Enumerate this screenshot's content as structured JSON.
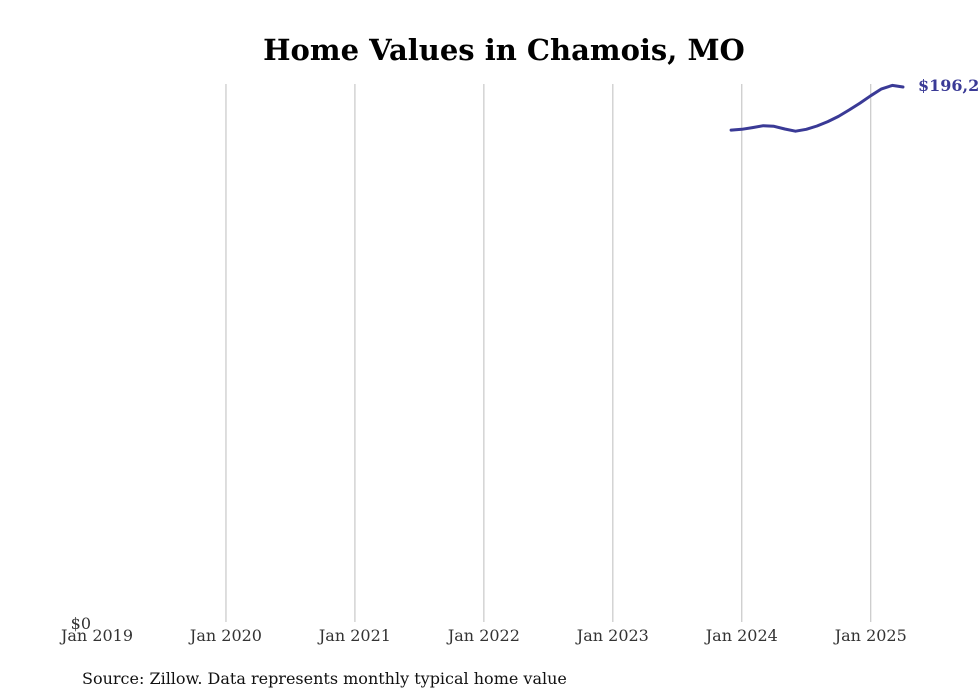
{
  "chart_data": {
    "type": "line",
    "title": "Home Values in Chamois, MO",
    "source": "Source: Zillow. Data represents monthly typical home value",
    "xlabel": "",
    "ylabel": "",
    "x_ticks": [
      "Jan 2019",
      "Jan 2020",
      "Jan 2021",
      "Jan 2022",
      "Jan 2023",
      "Jan 2024",
      "Jan 2025"
    ],
    "y_ticks": [
      "$0"
    ],
    "xlim": [
      "2019-01",
      "2025-04"
    ],
    "ylim": [
      0,
      196200
    ],
    "grid": "vertical",
    "series_color": "#3a3a96",
    "end_label": "$196,2",
    "series": [
      {
        "x": [
          "2023-12",
          "2024-01",
          "2024-02",
          "2024-03",
          "2024-04",
          "2024-05",
          "2024-06",
          "2024-07",
          "2024-08",
          "2024-09",
          "2024-10",
          "2024-11",
          "2024-12",
          "2025-01",
          "2025-02",
          "2025-03",
          "2025-04"
        ],
        "values": [
          180400,
          180700,
          181300,
          182000,
          181800,
          180800,
          180000,
          180700,
          181900,
          183500,
          185400,
          187800,
          190300,
          193000,
          195500,
          196800,
          196200
        ]
      }
    ]
  }
}
